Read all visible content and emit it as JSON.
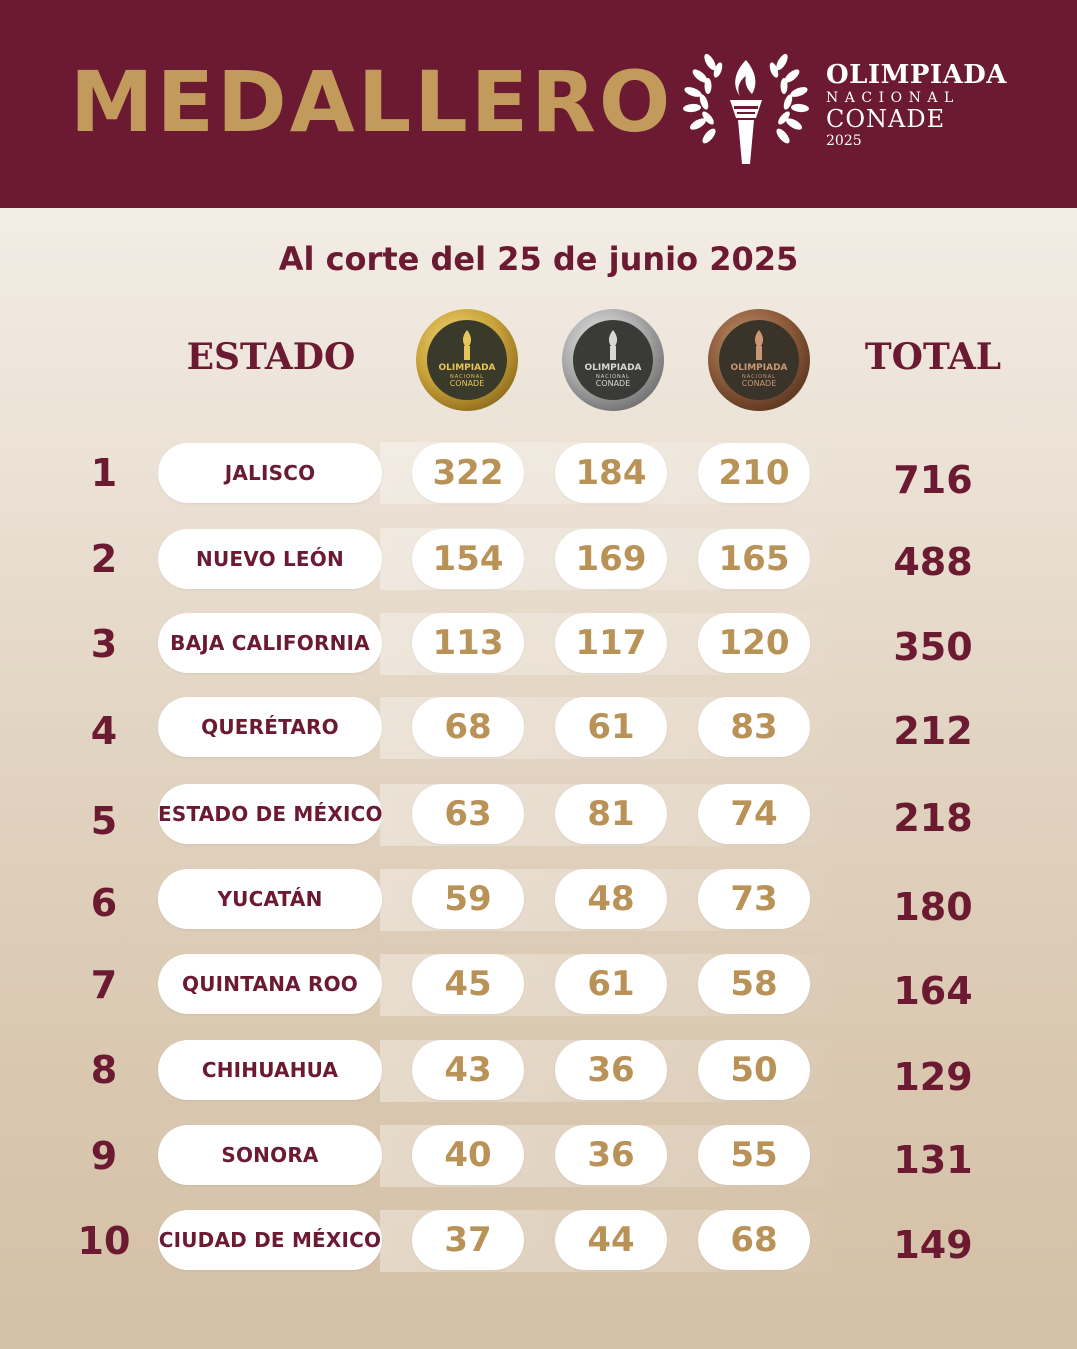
{
  "header": {
    "title": "MEDALLERO",
    "logo": {
      "line1": "OLIMPIADA",
      "line2": "NACIONAL",
      "line3": "CONADE",
      "line4": "2025",
      "icon": "torch-laurel-icon"
    }
  },
  "subtitle": "Al corte del 25 de junio 2025",
  "columns": {
    "estado": "ESTADO",
    "total": "TOTAL",
    "medals": [
      {
        "name": "gold-medal-icon",
        "color": "#c9a23a",
        "label1": "OLIMPIADA",
        "label2": "NACIONAL",
        "label3": "CONADE"
      },
      {
        "name": "silver-medal-icon",
        "color": "#a8a8a8",
        "label1": "OLIMPIADA",
        "label2": "NACIONAL",
        "label3": "CONADE"
      },
      {
        "name": "bronze-medal-icon",
        "color": "#8a5a3a",
        "label1": "OLIMPIADA",
        "label2": "NACIONAL",
        "label3": "CONADE"
      }
    ]
  },
  "rows": [
    {
      "rank": "1",
      "state": "JALISCO",
      "gold": "322",
      "silver": "184",
      "bronze": "210",
      "total": "716"
    },
    {
      "rank": "2",
      "state": "NUEVO LEÓN",
      "gold": "154",
      "silver": "169",
      "bronze": "165",
      "total": "488"
    },
    {
      "rank": "3",
      "state": "BAJA CALIFORNIA",
      "gold": "113",
      "silver": "117",
      "bronze": "120",
      "total": "350"
    },
    {
      "rank": "4",
      "state": "QUERÉTARO",
      "gold": "68",
      "silver": "61",
      "bronze": "83",
      "total": "212"
    },
    {
      "rank": "5",
      "state": "ESTADO DE MÉXICO",
      "gold": "63",
      "silver": "81",
      "bronze": "74",
      "total": "218"
    },
    {
      "rank": "6",
      "state": "YUCATÁN",
      "gold": "59",
      "silver": "48",
      "bronze": "73",
      "total": "180"
    },
    {
      "rank": "7",
      "state": "QUINTANA ROO",
      "gold": "45",
      "silver": "61",
      "bronze": "58",
      "total": "164"
    },
    {
      "rank": "8",
      "state": "CHIHUAHUA",
      "gold": "43",
      "silver": "36",
      "bronze": "50",
      "total": "129"
    },
    {
      "rank": "9",
      "state": "SONORA",
      "gold": "40",
      "silver": "36",
      "bronze": "55",
      "total": "131"
    },
    {
      "rank": "10",
      "state": "CIUDAD DE MÉXICO",
      "gold": "37",
      "silver": "44",
      "bronze": "68",
      "total": "149"
    }
  ],
  "colors": {
    "maroon": "#6b1a32",
    "gold_text": "#c29b5c",
    "number_text": "#b99257"
  }
}
